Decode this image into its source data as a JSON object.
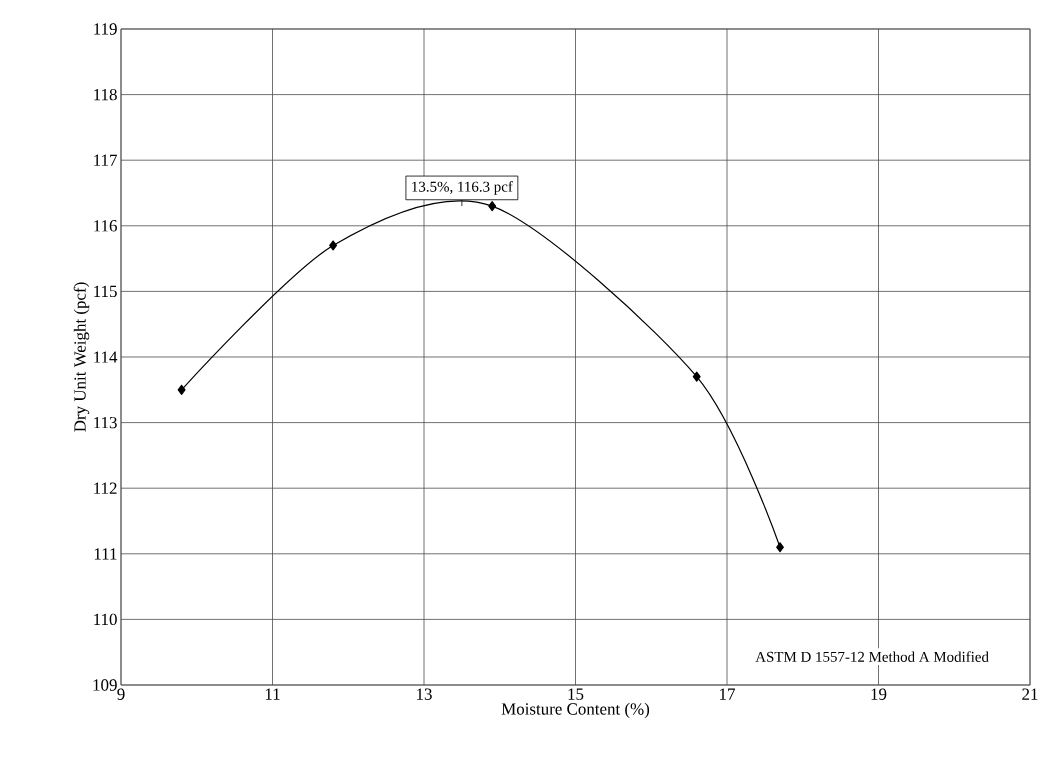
{
  "chart_data": {
    "type": "line",
    "xlabel": "Moisture Content (%)",
    "ylabel": "Dry Unit Weight (pcf)",
    "x": [
      9.8,
      11.8,
      13.9,
      16.6,
      17.7
    ],
    "series": [
      {
        "color": "#000000",
        "values": [
          113.5,
          115.7,
          116.3,
          113.7,
          111.1
        ]
      }
    ],
    "xlim": [
      9,
      21
    ],
    "xticks": [
      9,
      11,
      13,
      15,
      17,
      19,
      21
    ],
    "ylim": [
      109,
      119
    ],
    "yticks": [
      109,
      110,
      111,
      112,
      113,
      114,
      115,
      116,
      117,
      118,
      119
    ],
    "grid": true,
    "marker": "diamond",
    "line_style": "solid",
    "annotations": [
      {
        "text": "13.5%, 116.3 pcf",
        "x": 13.5,
        "y": 116.3
      },
      "ASTM D 1557-12 Method A Modified"
    ]
  }
}
